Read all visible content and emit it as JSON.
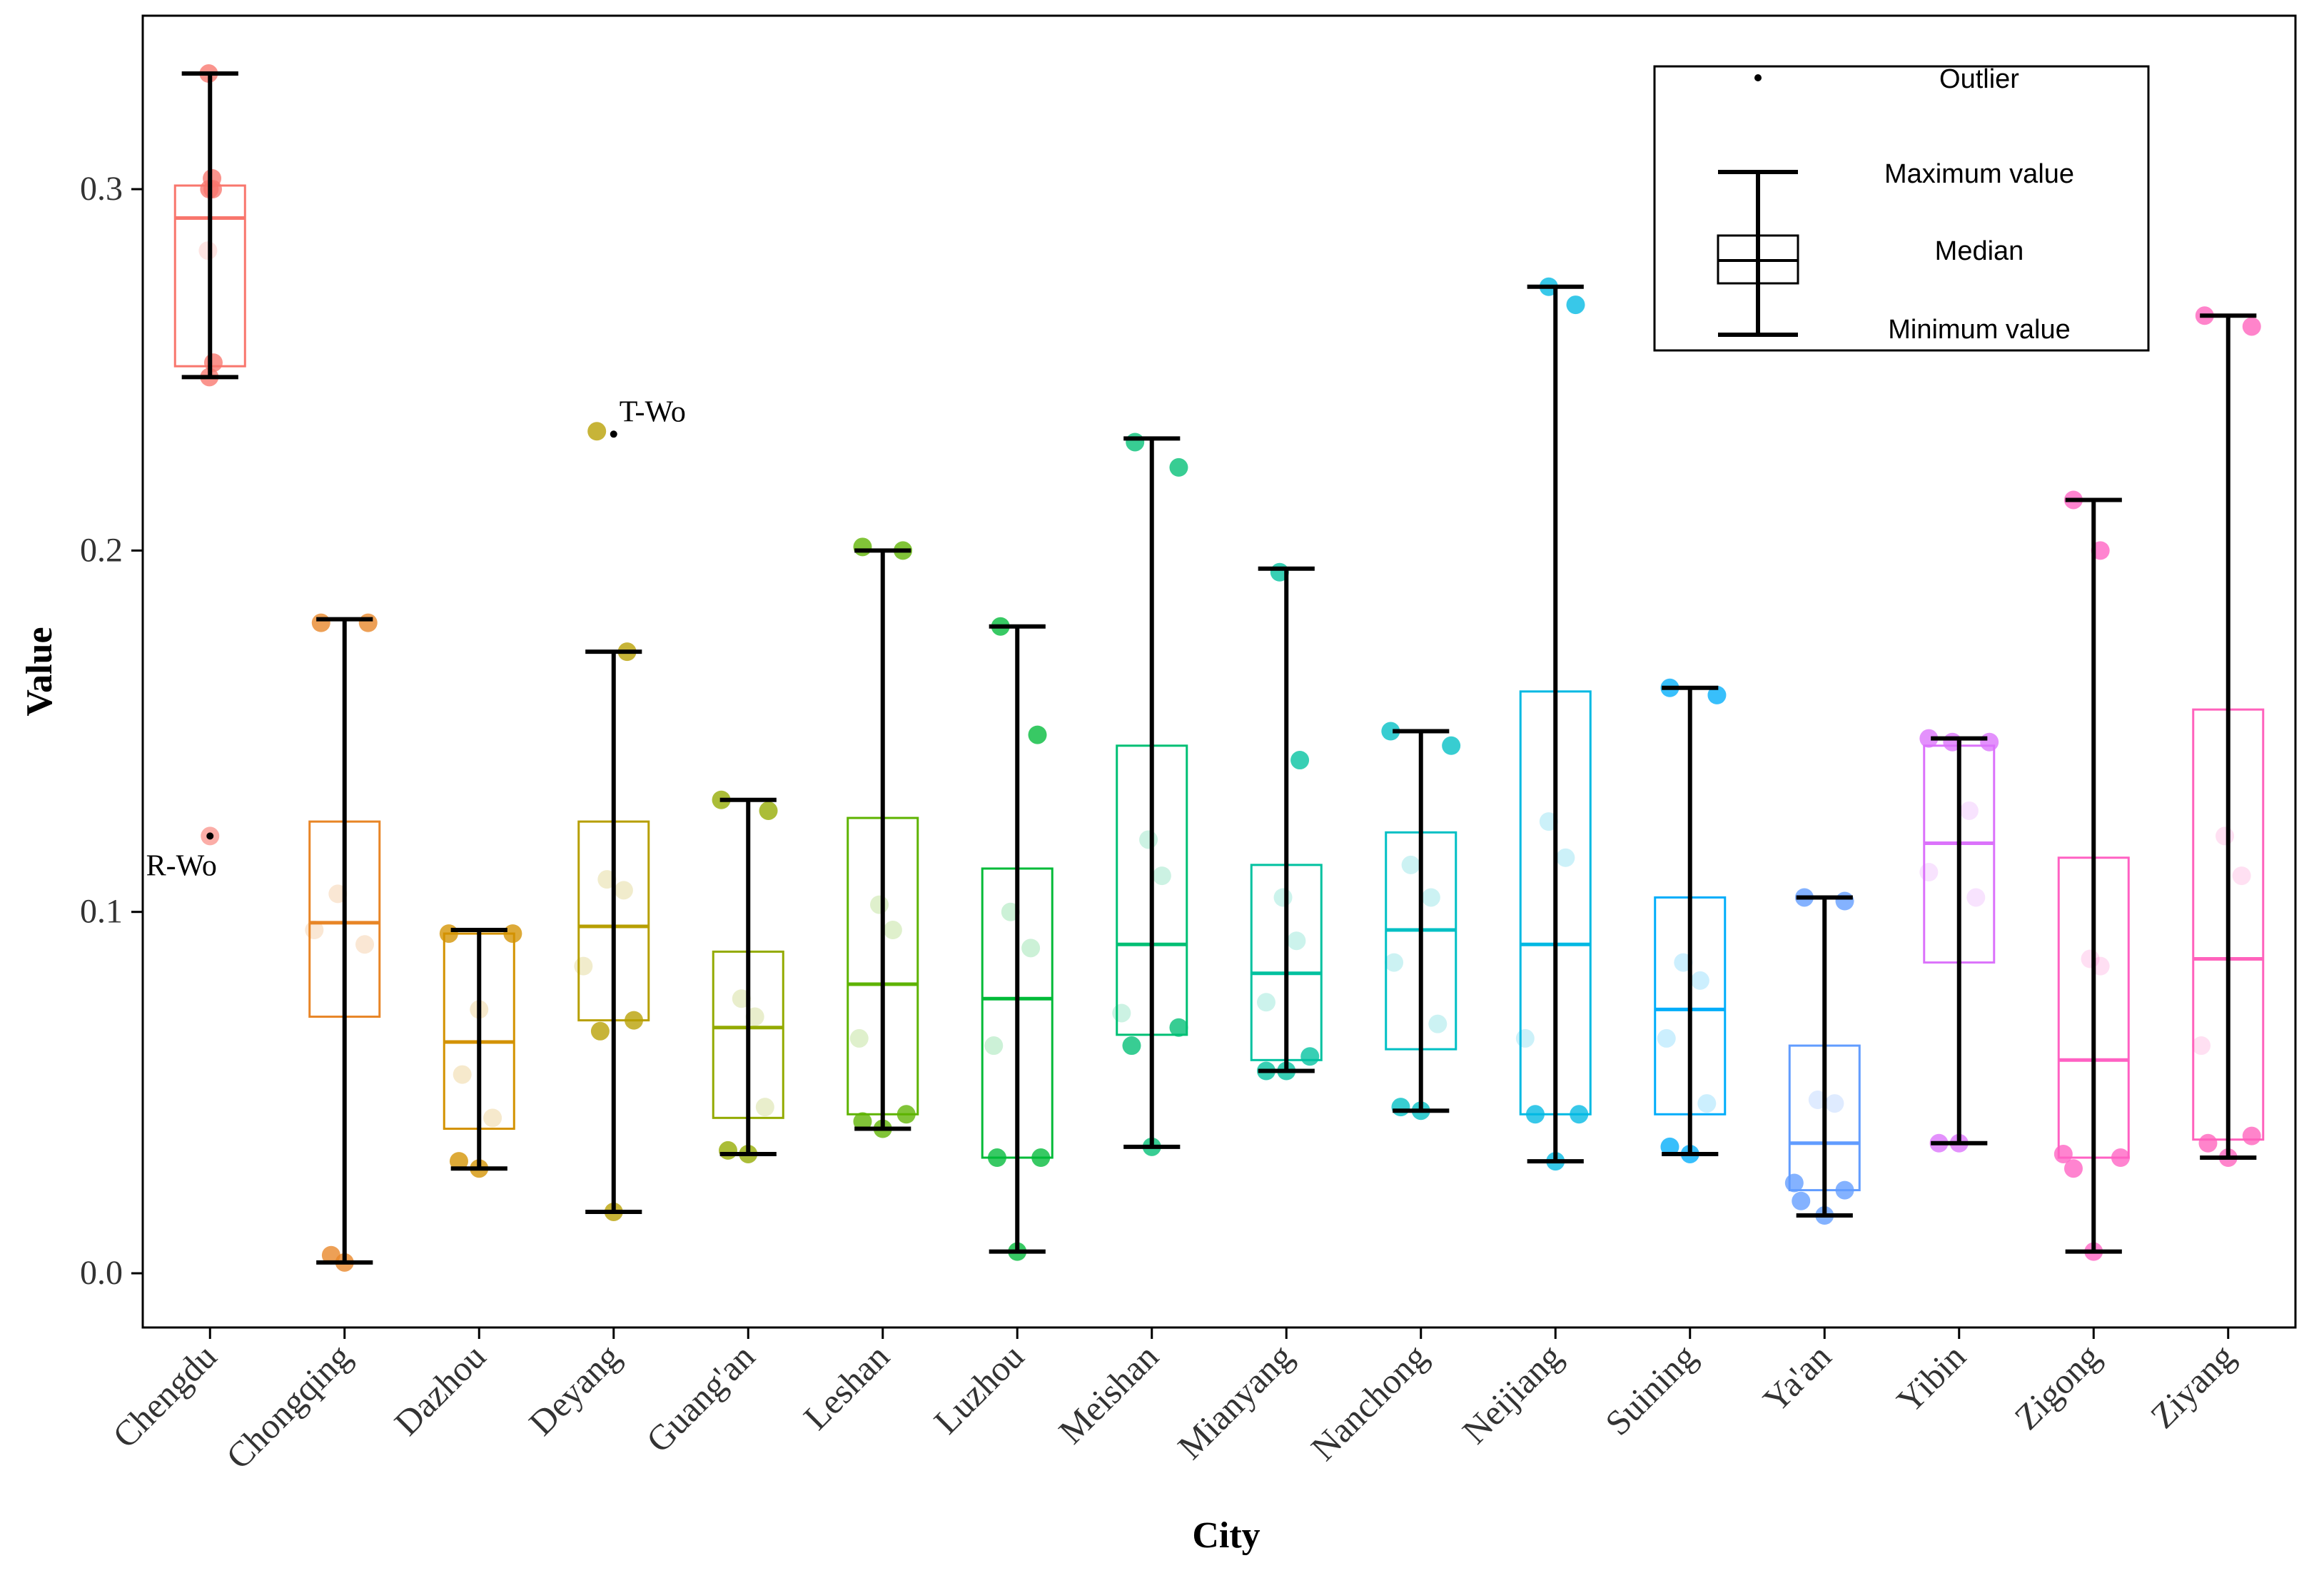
{
  "chart_data": {
    "type": "box",
    "title": "",
    "xlabel": "City",
    "ylabel": "Value",
    "ylim": [
      -0.015,
      0.348
    ],
    "y_ticks": [
      {
        "value": 0.0,
        "label": "0.0"
      },
      {
        "value": 0.1,
        "label": "0.1"
      },
      {
        "value": 0.2,
        "label": "0.2"
      },
      {
        "value": 0.3,
        "label": "0.3"
      }
    ],
    "categories": [
      "Chengdu",
      "Chongqing",
      "Dazhou",
      "Deyang",
      "Guang'an",
      "Leshan",
      "Luzhou",
      "Meishan",
      "Mianyang",
      "Nanchong",
      "Neijiang",
      "Suining",
      "Ya'an",
      "Yibin",
      "Zigong",
      "Ziyang"
    ],
    "series": [
      {
        "name": "Chengdu",
        "color": "#F8766D",
        "q1": 0.251,
        "median": 0.292,
        "q3": 0.301,
        "whisker_low": 0.248,
        "whisker_high": 0.332,
        "points": [
          [
            -0.02,
            0.332
          ],
          [
            -0.01,
            0.248
          ],
          [
            -0.03,
            0.283
          ],
          [
            -0.01,
            0.3
          ],
          [
            0.04,
            0.3
          ],
          [
            0.03,
            0.303
          ],
          [
            0.05,
            0.252
          ]
        ]
      },
      {
        "name": "Chongqing",
        "color": "#E88526",
        "q1": 0.071,
        "median": 0.097,
        "q3": 0.125,
        "whisker_low": 0.003,
        "whisker_high": 0.181,
        "points": [
          [
            -0.35,
            0.18
          ],
          [
            0.35,
            0.18
          ],
          [
            -0.45,
            0.095
          ],
          [
            -0.1,
            0.105
          ],
          [
            0.3,
            0.091
          ],
          [
            -0.2,
            0.005
          ],
          [
            0.0,
            0.003
          ]
        ]
      },
      {
        "name": "Dazhou",
        "color": "#D39200",
        "q1": 0.04,
        "median": 0.064,
        "q3": 0.094,
        "whisker_low": 0.029,
        "whisker_high": 0.095,
        "points": [
          [
            -0.45,
            0.094
          ],
          [
            0.5,
            0.094
          ],
          [
            0.0,
            0.073
          ],
          [
            -0.25,
            0.055
          ],
          [
            0.2,
            0.043
          ],
          [
            -0.3,
            0.031
          ],
          [
            0.0,
            0.029
          ]
        ]
      },
      {
        "name": "Deyang",
        "color": "#B79F00",
        "q1": 0.07,
        "median": 0.096,
        "q3": 0.125,
        "whisker_low": 0.017,
        "whisker_high": 0.172,
        "points": [
          [
            -0.25,
            0.233
          ],
          [
            0.2,
            0.172
          ],
          [
            -0.1,
            0.109
          ],
          [
            0.15,
            0.106
          ],
          [
            -0.45,
            0.085
          ],
          [
            0.3,
            0.07
          ],
          [
            -0.2,
            0.067
          ],
          [
            0.0,
            0.017
          ]
        ]
      },
      {
        "name": "Guang'an",
        "color": "#93AA00",
        "q1": 0.043,
        "median": 0.068,
        "q3": 0.089,
        "whisker_low": 0.033,
        "whisker_high": 0.131,
        "points": [
          [
            -0.4,
            0.131
          ],
          [
            0.3,
            0.128
          ],
          [
            -0.1,
            0.076
          ],
          [
            0.1,
            0.071
          ],
          [
            0.25,
            0.046
          ],
          [
            -0.3,
            0.034
          ],
          [
            0.0,
            0.033
          ]
        ]
      },
      {
        "name": "Leshan",
        "color": "#5EB300",
        "q1": 0.044,
        "median": 0.08,
        "q3": 0.126,
        "whisker_low": 0.04,
        "whisker_high": 0.2,
        "points": [
          [
            -0.3,
            0.201
          ],
          [
            0.3,
            0.2
          ],
          [
            -0.05,
            0.102
          ],
          [
            0.15,
            0.095
          ],
          [
            -0.35,
            0.065
          ],
          [
            0.35,
            0.044
          ],
          [
            -0.3,
            0.042
          ],
          [
            0.0,
            0.04
          ]
        ]
      },
      {
        "name": "Luzhou",
        "color": "#00BA38",
        "q1": 0.032,
        "median": 0.076,
        "q3": 0.112,
        "whisker_low": 0.006,
        "whisker_high": 0.179,
        "points": [
          [
            -0.25,
            0.179
          ],
          [
            0.3,
            0.149
          ],
          [
            -0.1,
            0.1
          ],
          [
            0.2,
            0.09
          ],
          [
            -0.35,
            0.063
          ],
          [
            0.35,
            0.032
          ],
          [
            -0.3,
            0.032
          ],
          [
            0.0,
            0.006
          ]
        ]
      },
      {
        "name": "Meishan",
        "color": "#00BF74",
        "q1": 0.066,
        "median": 0.091,
        "q3": 0.146,
        "whisker_low": 0.035,
        "whisker_high": 0.231,
        "points": [
          [
            -0.25,
            0.23
          ],
          [
            0.4,
            0.223
          ],
          [
            -0.05,
            0.12
          ],
          [
            0.15,
            0.11
          ],
          [
            -0.45,
            0.072
          ],
          [
            0.4,
            0.068
          ],
          [
            -0.3,
            0.063
          ],
          [
            0.0,
            0.035
          ]
        ]
      },
      {
        "name": "Mianyang",
        "color": "#00C19F",
        "q1": 0.059,
        "median": 0.083,
        "q3": 0.113,
        "whisker_low": 0.056,
        "whisker_high": 0.195,
        "points": [
          [
            -0.1,
            0.194
          ],
          [
            0.2,
            0.142
          ],
          [
            -0.05,
            0.104
          ],
          [
            0.15,
            0.092
          ],
          [
            -0.3,
            0.075
          ],
          [
            0.35,
            0.06
          ],
          [
            -0.3,
            0.056
          ],
          [
            0.0,
            0.056
          ]
        ]
      },
      {
        "name": "Nanchong",
        "color": "#00BFC4",
        "q1": 0.062,
        "median": 0.095,
        "q3": 0.122,
        "whisker_low": 0.045,
        "whisker_high": 0.15,
        "points": [
          [
            -0.45,
            0.15
          ],
          [
            0.45,
            0.146
          ],
          [
            -0.15,
            0.113
          ],
          [
            0.15,
            0.104
          ],
          [
            -0.4,
            0.086
          ],
          [
            0.25,
            0.069
          ],
          [
            -0.3,
            0.046
          ],
          [
            0.0,
            0.045
          ]
        ]
      },
      {
        "name": "Neijiang",
        "color": "#00B9E3",
        "q1": 0.044,
        "median": 0.091,
        "q3": 0.161,
        "whisker_low": 0.031,
        "whisker_high": 0.273,
        "points": [
          [
            -0.1,
            0.273
          ],
          [
            0.3,
            0.268
          ],
          [
            -0.1,
            0.125
          ],
          [
            0.15,
            0.115
          ],
          [
            -0.45,
            0.065
          ],
          [
            0.35,
            0.044
          ],
          [
            -0.3,
            0.044
          ],
          [
            0.0,
            0.031
          ]
        ]
      },
      {
        "name": "Suining",
        "color": "#00ADFA",
        "q1": 0.044,
        "median": 0.073,
        "q3": 0.104,
        "whisker_low": 0.033,
        "whisker_high": 0.162,
        "points": [
          [
            -0.3,
            0.162
          ],
          [
            0.4,
            0.16
          ],
          [
            -0.1,
            0.086
          ],
          [
            0.15,
            0.081
          ],
          [
            -0.35,
            0.065
          ],
          [
            0.25,
            0.047
          ],
          [
            -0.3,
            0.035
          ],
          [
            0.0,
            0.033
          ]
        ]
      },
      {
        "name": "Ya'an",
        "color": "#619CFF",
        "q1": 0.023,
        "median": 0.036,
        "q3": 0.063,
        "whisker_low": 0.016,
        "whisker_high": 0.104,
        "points": [
          [
            -0.3,
            0.104
          ],
          [
            0.3,
            0.103
          ],
          [
            -0.1,
            0.048
          ],
          [
            0.15,
            0.047
          ],
          [
            -0.45,
            0.025
          ],
          [
            0.3,
            0.023
          ],
          [
            -0.35,
            0.02
          ],
          [
            0.0,
            0.016
          ]
        ]
      },
      {
        "name": "Yibin",
        "color": "#DB72FB",
        "q1": 0.086,
        "median": 0.119,
        "q3": 0.146,
        "whisker_low": 0.036,
        "whisker_high": 0.148,
        "points": [
          [
            -0.45,
            0.148
          ],
          [
            0.45,
            0.147
          ],
          [
            -0.1,
            0.147
          ],
          [
            0.15,
            0.128
          ],
          [
            -0.45,
            0.111
          ],
          [
            0.25,
            0.104
          ],
          [
            -0.3,
            0.036
          ],
          [
            0.0,
            0.036
          ]
        ]
      },
      {
        "name": "Zigong",
        "color": "#FF61C3",
        "q1": 0.032,
        "median": 0.059,
        "q3": 0.115,
        "whisker_low": 0.006,
        "whisker_high": 0.214,
        "points": [
          [
            -0.3,
            0.214
          ],
          [
            0.1,
            0.2
          ],
          [
            -0.05,
            0.087
          ],
          [
            0.1,
            0.085
          ],
          [
            -0.45,
            0.033
          ],
          [
            0.4,
            0.032
          ],
          [
            -0.3,
            0.029
          ],
          [
            0.0,
            0.006
          ]
        ]
      },
      {
        "name": "Ziyang",
        "color": "#FF62BC",
        "q1": 0.037,
        "median": 0.087,
        "q3": 0.156,
        "whisker_low": 0.032,
        "whisker_high": 0.265,
        "points": [
          [
            -0.35,
            0.265
          ],
          [
            0.35,
            0.262
          ],
          [
            -0.05,
            0.121
          ],
          [
            0.2,
            0.11
          ],
          [
            -0.4,
            0.063
          ],
          [
            0.35,
            0.038
          ],
          [
            -0.3,
            0.036
          ],
          [
            0.0,
            0.032
          ]
        ]
      }
    ],
    "outliers": [
      {
        "category": "Chengdu",
        "value": 0.121,
        "label": "R-Wo"
      },
      {
        "category": "Deyang",
        "value": 0.233,
        "label": "T-Wo"
      }
    ],
    "legend": {
      "position": "top-right",
      "items": [
        "Outlier",
        "Maximum value",
        "Median",
        "Minimum value"
      ]
    }
  }
}
